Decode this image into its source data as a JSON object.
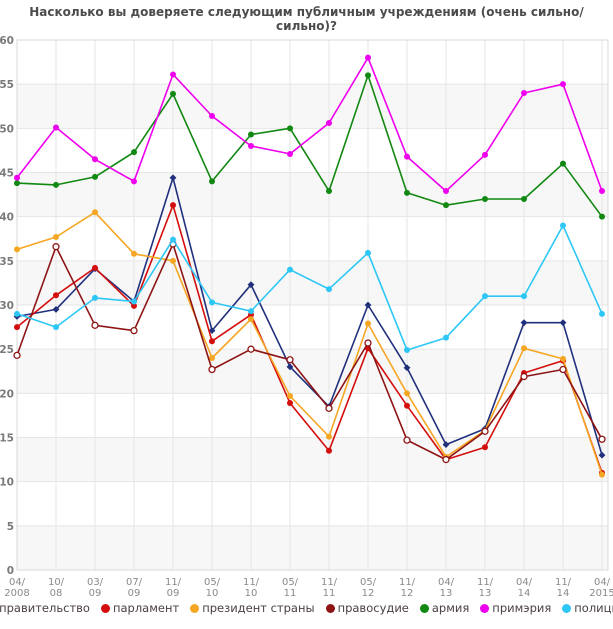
{
  "title": "Насколько вы доверяете следующим публичным учреждениям (очень сильно/сильно)?",
  "chart_data": {
    "type": "line",
    "x_labels": [
      "04/2008",
      "10/08",
      "03/09",
      "07/09",
      "11/09",
      "05/10",
      "11/10",
      "05/11",
      "11/11",
      "05/12",
      "11/12",
      "04/13",
      "11/13",
      "04/14",
      "11/14",
      "04/2015"
    ],
    "ylim": [
      0,
      60
    ],
    "y_tick_step": 5,
    "grid": true,
    "alternating_bands": true,
    "legend_position": "bottom",
    "series": [
      {
        "key": "government",
        "name": "правительство",
        "color": "#20307d",
        "marker": "diamond",
        "values": [
          28.7,
          29.5,
          34.1,
          30.4,
          44.4,
          27.1,
          32.3,
          23.0,
          18.5,
          30.0,
          22.9,
          14.2,
          16.0,
          28.0,
          28.0,
          13.0
        ]
      },
      {
        "key": "parliament",
        "name": "парламент",
        "color": "#d40d0d",
        "marker": "circle",
        "values": [
          27.5,
          31.1,
          34.2,
          29.9,
          41.3,
          25.9,
          28.9,
          18.9,
          13.5,
          25.1,
          18.6,
          12.5,
          13.9,
          22.3,
          23.7,
          11.0
        ]
      },
      {
        "key": "president",
        "name": "президент страны",
        "color": "#f5a623",
        "marker": "circle",
        "values": [
          36.3,
          37.7,
          40.5,
          35.8,
          35.0,
          24.0,
          28.4,
          19.7,
          15.1,
          27.9,
          20.0,
          12.8,
          15.8,
          25.1,
          23.9,
          10.8
        ]
      },
      {
        "key": "justice",
        "name": "правосудие",
        "color": "#8e1515",
        "marker": "circle-open",
        "values": [
          24.3,
          36.6,
          27.7,
          27.1,
          36.9,
          22.7,
          25.0,
          23.8,
          18.3,
          25.7,
          14.7,
          12.5,
          15.7,
          21.9,
          22.7,
          14.8
        ]
      },
      {
        "key": "army",
        "name": "армия",
        "color": "#118811",
        "marker": "circle",
        "values": [
          43.8,
          43.6,
          44.5,
          47.3,
          53.9,
          44.0,
          49.3,
          50.0,
          42.9,
          56.0,
          42.7,
          41.3,
          42.0,
          42.0,
          46.0,
          40.0
        ]
      },
      {
        "key": "city-hall",
        "name": "примэрия",
        "color": "#ee00ee",
        "marker": "circle",
        "values": [
          44.4,
          50.1,
          46.5,
          44.0,
          56.1,
          51.4,
          48.0,
          47.1,
          50.6,
          58.0,
          46.8,
          42.9,
          47.0,
          54.0,
          55.0,
          42.9
        ]
      },
      {
        "key": "police",
        "name": "полиция",
        "color": "#2ec7f5",
        "marker": "circle",
        "values": [
          29.0,
          27.5,
          30.8,
          30.4,
          37.4,
          30.3,
          29.3,
          34.0,
          31.8,
          35.9,
          24.9,
          26.3,
          31.0,
          31.0,
          39.0,
          29.0
        ]
      }
    ]
  },
  "colors": {
    "band": "#f7f7f7",
    "grid": "#e6e6e6",
    "plot_border": "#d9d9d9",
    "y_label": "#7a7a7a",
    "x_label": "#8a8a8a",
    "title": "#4c4c4c",
    "legend_text": "#4a4040",
    "background": "#ffffff"
  }
}
